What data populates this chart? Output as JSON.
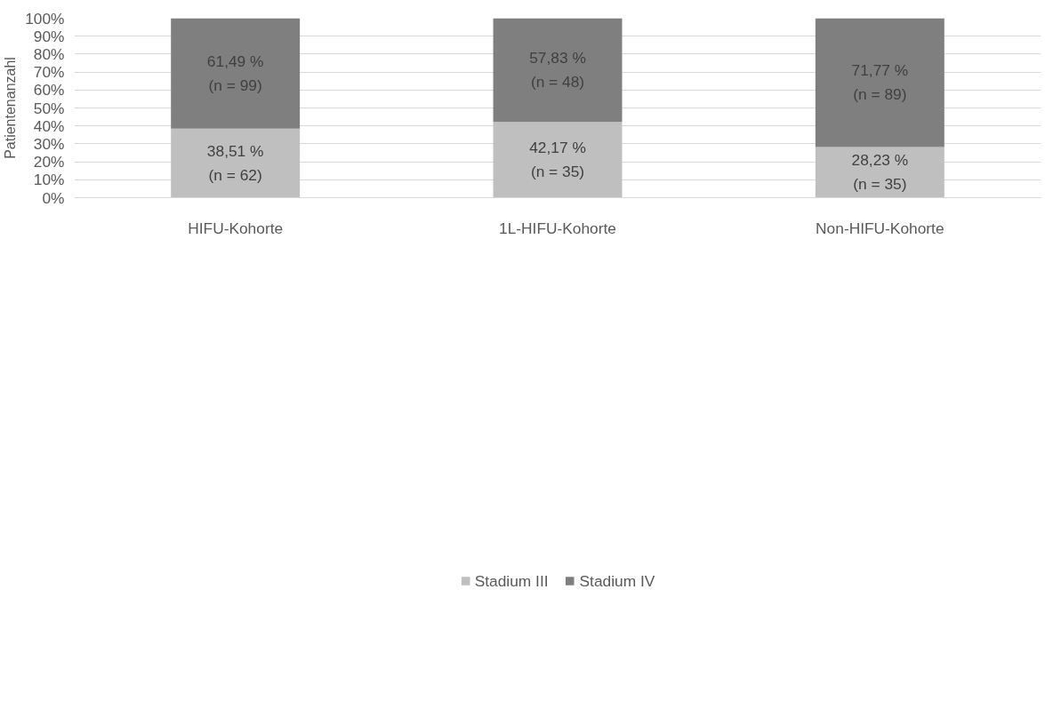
{
  "chart_data": {
    "type": "bar",
    "stacked": true,
    "ylabel": "Patientenanzahl",
    "categories": [
      "HIFU-Kohorte",
      "1L-HIFU-Kohorte",
      "Non-HIFU-Kohorte"
    ],
    "series": [
      {
        "name": "Stadium III",
        "color": "#bfbfbf",
        "values": [
          38.51,
          42.17,
          28.23
        ],
        "value_labels": [
          "38,51 %\n(n = 62)",
          "42,17 %\n(n = 35)",
          "28,23 %\n(n = 35)"
        ]
      },
      {
        "name": "Stadium IV",
        "color": "#7f7f7f",
        "values": [
          61.49,
          57.83,
          71.77
        ],
        "value_labels": [
          "61,49 %\n(n = 99)",
          "57,83 %\n(n = 48)",
          "71,77 %\n(n = 89)"
        ]
      }
    ],
    "ylim": [
      0,
      100
    ],
    "yticks": [
      {
        "value": 0,
        "label": "0%"
      },
      {
        "value": 10,
        "label": "10%"
      },
      {
        "value": 20,
        "label": "20%"
      },
      {
        "value": 30,
        "label": "30%"
      },
      {
        "value": 40,
        "label": "40%"
      },
      {
        "value": 50,
        "label": "50%"
      },
      {
        "value": 60,
        "label": "60%"
      },
      {
        "value": 70,
        "label": "70%"
      },
      {
        "value": 80,
        "label": "80%"
      },
      {
        "value": 90,
        "label": "90%"
      },
      {
        "value": 100,
        "label": "100%"
      }
    ],
    "grid": "y",
    "legend": "bottom"
  }
}
